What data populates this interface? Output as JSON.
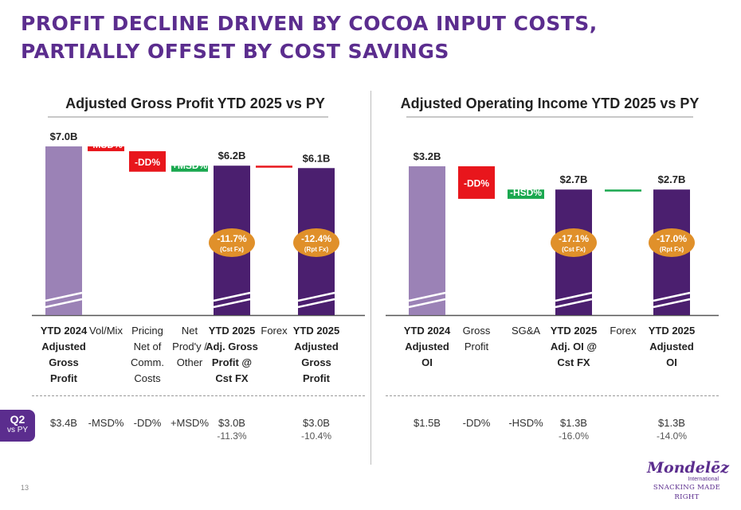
{
  "page": {
    "title": "PROFIT DECLINE DRIVEN BY COCOA INPUT COSTS, PARTIALLY OFFSET BY COST SAVINGS",
    "page_number": "13",
    "q2_badge": {
      "top": "Q2",
      "bottom": "vs PY"
    },
    "logo": {
      "brand": "Mondelēz",
      "sub": "International",
      "tagline": "SNACKING MADE RIGHT"
    }
  },
  "colors": {
    "purple_light": "#9b82b6",
    "purple_dark": "#4b1f6f",
    "red": "#e8161c",
    "green": "#1aa84f",
    "orange": "#e0902a",
    "title": "#5b2d8e"
  },
  "chart_data": [
    {
      "type": "bar",
      "subtype": "waterfall",
      "title": "Adjusted Gross Profit YTD 2025 vs PY",
      "categories": [
        "YTD 2024 Adjusted Gross Profit",
        "Vol/Mix",
        "Pricing Net of Comm. Costs",
        "Net Prod'y / Other",
        "YTD 2025 Adj. Gross Profit @ Cst FX",
        "Forex",
        "YTD 2025 Adjusted Gross Profit"
      ],
      "label_lines": [
        [
          "YTD 2024",
          "Adjusted",
          "Gross",
          "Profit"
        ],
        [
          "Vol/Mix"
        ],
        [
          "Pricing",
          "Net of",
          "Comm.",
          "Costs"
        ],
        [
          "Net",
          "Prod'y /",
          "Other"
        ],
        [
          "YTD 2025",
          "Adj. Gross",
          "Profit @",
          "Cst FX"
        ],
        [
          "Forex"
        ],
        [
          "YTD 2025",
          "Adjusted",
          "Gross",
          "Profit"
        ]
      ],
      "label_bold": [
        true,
        false,
        false,
        false,
        true,
        false,
        true
      ],
      "bars": [
        {
          "kind": "total",
          "color": "light",
          "value": 7.0,
          "label": "$7.0B"
        },
        {
          "kind": "delta",
          "color": "red",
          "from": 7.0,
          "to": 6.8,
          "label": "-MSD%"
        },
        {
          "kind": "delta",
          "color": "red",
          "from": 6.8,
          "to": 5.95,
          "label": "-DD%"
        },
        {
          "kind": "delta",
          "color": "green",
          "from": 5.95,
          "to": 6.2,
          "label": "+MSD%"
        },
        {
          "kind": "total",
          "color": "dark",
          "value": 6.2,
          "label": "$6.2B",
          "badge": "-11.7%",
          "badge_sub": "(Cst Fx)"
        },
        {
          "kind": "delta",
          "color": "red",
          "from": 6.2,
          "to": 6.15,
          "label": ""
        },
        {
          "kind": "total",
          "color": "dark",
          "value": 6.1,
          "label": "$6.1B",
          "badge": "-12.4%",
          "badge_sub": "(Rpt Fx)"
        }
      ],
      "q2_vs_py": [
        {
          "value": "$3.4B",
          "sub": ""
        },
        {
          "value": "-MSD%",
          "sub": ""
        },
        {
          "value": "-DD%",
          "sub": ""
        },
        {
          "value": "+MSD%",
          "sub": ""
        },
        {
          "value": "$3.0B",
          "sub": "-11.3%"
        },
        {
          "value": "",
          "sub": ""
        },
        {
          "value": "$3.0B",
          "sub": "-10.4%"
        }
      ]
    },
    {
      "type": "bar",
      "subtype": "waterfall",
      "title": "Adjusted Operating Income YTD 2025 vs PY",
      "categories": [
        "YTD 2024 Adjusted OI",
        "Gross Profit",
        "SG&A",
        "YTD 2025 Adj. OI @ Cst FX",
        "Forex",
        "YTD 2025 Adjusted OI"
      ],
      "label_lines": [
        [
          "YTD 2024",
          "Adjusted",
          "OI"
        ],
        [
          "Gross",
          "Profit"
        ],
        [
          "SG&A"
        ],
        [
          "YTD 2025",
          "Adj. OI @",
          "Cst FX"
        ],
        [
          "Forex"
        ],
        [
          "YTD 2025",
          "Adjusted",
          "OI"
        ]
      ],
      "label_bold": [
        true,
        false,
        false,
        true,
        false,
        true
      ],
      "bars": [
        {
          "kind": "total",
          "color": "light",
          "value": 3.2,
          "label": "$3.2B"
        },
        {
          "kind": "delta",
          "color": "red",
          "from": 3.2,
          "to": 2.5,
          "label": "-DD%"
        },
        {
          "kind": "delta",
          "color": "green",
          "from": 2.5,
          "to": 2.7,
          "label": "-HSD%"
        },
        {
          "kind": "total",
          "color": "dark",
          "value": 2.7,
          "label": "$2.7B",
          "badge": "-17.1%",
          "badge_sub": "(Cst Fx)"
        },
        {
          "kind": "delta",
          "color": "green",
          "from": 2.7,
          "to": 2.7,
          "label": ""
        },
        {
          "kind": "total",
          "color": "dark",
          "value": 2.7,
          "label": "$2.7B",
          "badge": "-17.0%",
          "badge_sub": "(Rpt Fx)"
        }
      ],
      "q2_vs_py": [
        {
          "value": "$1.5B",
          "sub": ""
        },
        {
          "value": "-DD%",
          "sub": ""
        },
        {
          "value": "-HSD%",
          "sub": ""
        },
        {
          "value": "$1.3B",
          "sub": "-16.0%"
        },
        {
          "value": "",
          "sub": ""
        },
        {
          "value": "$1.3B",
          "sub": "-14.0%"
        }
      ]
    }
  ]
}
